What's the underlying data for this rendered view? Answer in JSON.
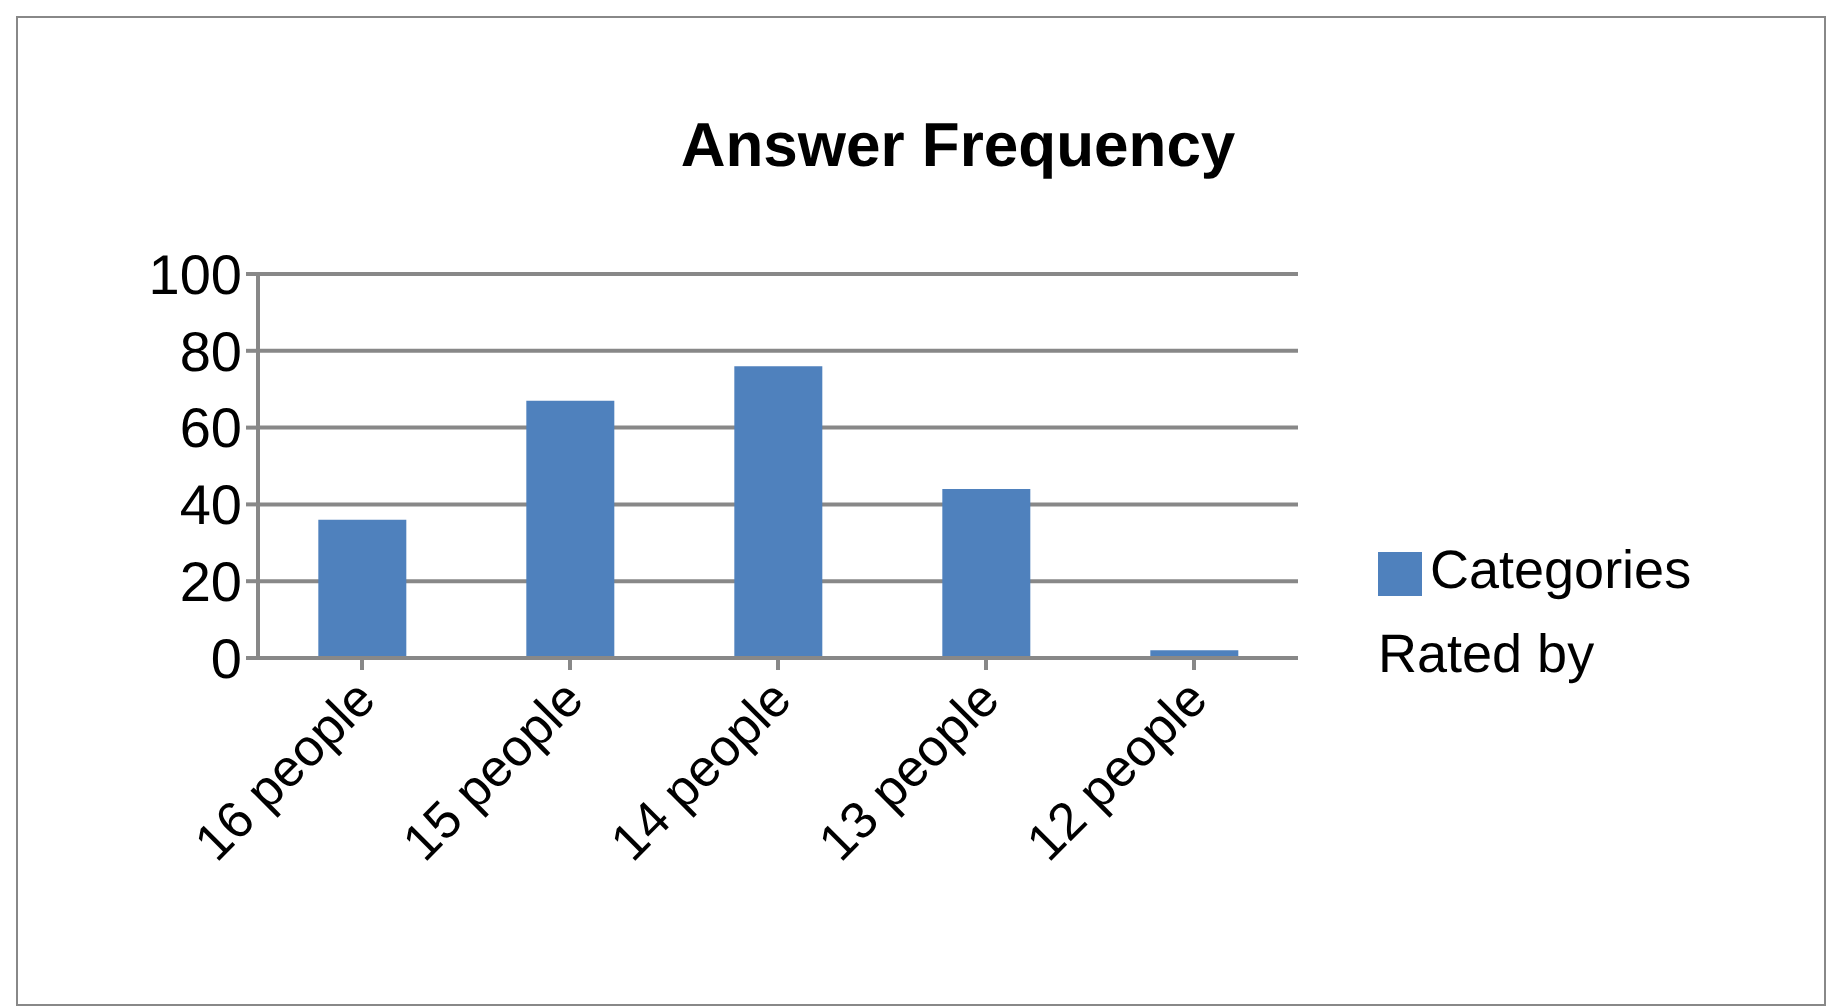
{
  "chart_data": {
    "type": "bar",
    "title": "Answer Frequency",
    "categories": [
      "16 people",
      "15 people",
      "14 people",
      "13 people",
      "12 people"
    ],
    "series": [
      {
        "name": "Categories Rated by",
        "color": "#4f81bd",
        "values": [
          36,
          67,
          76,
          44,
          2
        ]
      }
    ],
    "ylim": [
      0,
      100
    ],
    "yticks": [
      0,
      20,
      40,
      60,
      80,
      100
    ],
    "grid": "y",
    "legend": "right"
  }
}
